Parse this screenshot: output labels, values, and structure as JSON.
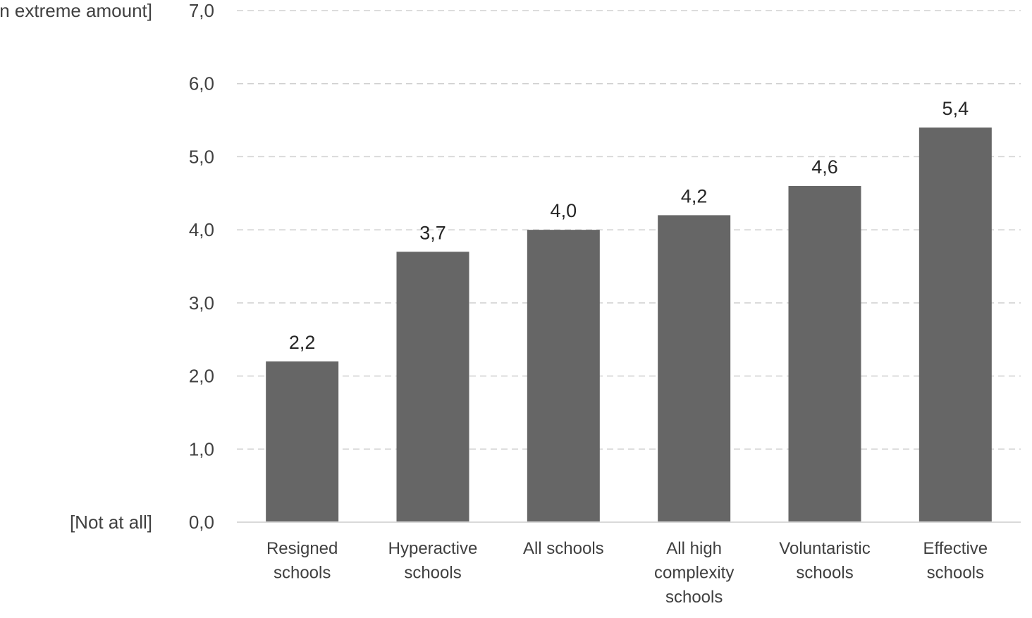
{
  "chart_data": {
    "type": "bar",
    "title": "",
    "xlabel": "",
    "ylabel": "",
    "categories": [
      [
        "Resigned",
        "schools"
      ],
      [
        "Hyperactive",
        "schools"
      ],
      [
        "All schools"
      ],
      [
        "All high",
        "complexity",
        "schools"
      ],
      [
        "Voluntaristic",
        "schools"
      ],
      [
        "Effective",
        "schools"
      ]
    ],
    "values": [
      2.2,
      3.7,
      4.0,
      4.2,
      4.6,
      5.4
    ],
    "data_labels": [
      "2,2",
      "3,7",
      "4,0",
      "4,2",
      "4,6",
      "5,4"
    ],
    "ylim": [
      0,
      7
    ],
    "y_ticks": [
      0,
      1,
      2,
      3,
      4,
      5,
      6,
      7
    ],
    "y_tick_labels": [
      "0,0",
      "1,0",
      "2,0",
      "3,0",
      "4,0",
      "5,0",
      "6,0",
      "7,0"
    ],
    "scale_end_labels": {
      "top": "[An extreme amount]",
      "bottom": "[Not at all]"
    },
    "grid": true,
    "legend": "none",
    "colors": {
      "bar": "#666666",
      "grid": "#d0d0d0",
      "axis": "#d9d9d9"
    }
  }
}
